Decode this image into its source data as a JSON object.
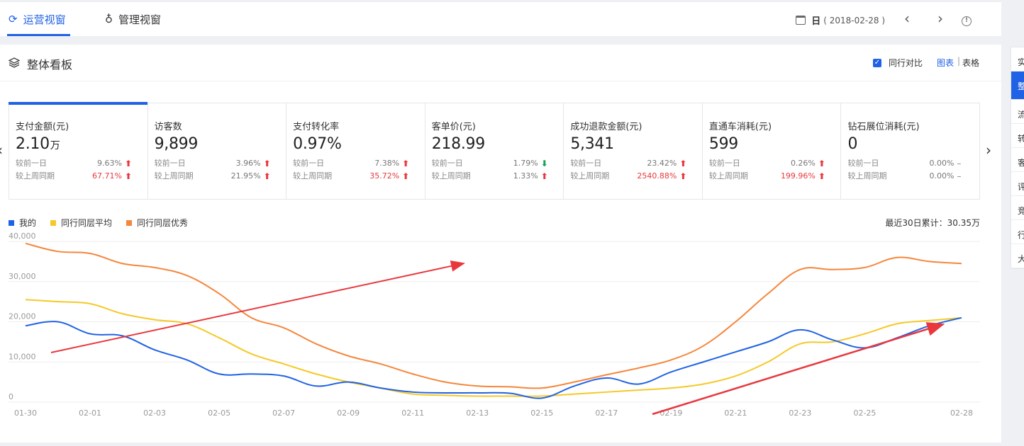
{
  "tabs": [
    {
      "label": "运营视窗",
      "active": true
    },
    {
      "label": "管理视窗",
      "active": false
    }
  ],
  "date": {
    "granularity": "日",
    "value": "( 2018-02-28 )"
  },
  "panel": {
    "title": "整体看板",
    "compare_label": "同行对比",
    "compare_checked": true,
    "view_chart": "图表",
    "view_sep": "|",
    "view_table": "表格"
  },
  "metrics": [
    {
      "label": "支付金额(元)",
      "value": "2.10",
      "unit": "万",
      "day_label": "较前一日",
      "day_value": "9.63%",
      "day_dir": "up",
      "day_red": false,
      "week_label": "较上周同期",
      "week_value": "67.71%",
      "week_dir": "up",
      "week_red": true
    },
    {
      "label": "访客数",
      "value": "9,899",
      "unit": "",
      "day_label": "较前一日",
      "day_value": "3.96%",
      "day_dir": "up",
      "day_red": false,
      "week_label": "较上周同期",
      "week_value": "21.95%",
      "week_dir": "up",
      "week_red": false
    },
    {
      "label": "支付转化率",
      "value": "0.97%",
      "unit": "",
      "day_label": "较前一日",
      "day_value": "7.38%",
      "day_dir": "up",
      "day_red": false,
      "week_label": "较上周同期",
      "week_value": "35.72%",
      "week_dir": "up",
      "week_red": true
    },
    {
      "label": "客单价(元)",
      "value": "218.99",
      "unit": "",
      "day_label": "较前一日",
      "day_value": "1.79%",
      "day_dir": "down",
      "day_red": false,
      "week_label": "较上周同期",
      "week_value": "1.33%",
      "week_dir": "up",
      "week_red": false
    },
    {
      "label": "成功退款金额(元)",
      "value": "5,341",
      "unit": "",
      "day_label": "较前一日",
      "day_value": "23.42%",
      "day_dir": "up",
      "day_red": false,
      "week_label": "较上周同期",
      "week_value": "2540.88%",
      "week_dir": "up",
      "week_red": true
    },
    {
      "label": "直通车消耗(元)",
      "value": "599",
      "unit": "",
      "day_label": "较前一日",
      "day_value": "0.26%",
      "day_dir": "up",
      "day_red": false,
      "week_label": "较上周同期",
      "week_value": "199.96%",
      "week_dir": "up",
      "week_red": true
    },
    {
      "label": "钻石展位消耗(元)",
      "value": "0",
      "unit": "",
      "day_label": "较前一日",
      "day_value": "0.00%",
      "day_dir": "flat",
      "day_red": false,
      "week_label": "较上周同期",
      "week_value": "0.00%",
      "week_dir": "flat",
      "week_red": false
    }
  ],
  "arrow_glyphs": {
    "up": "⬆",
    "down": "⬇",
    "flat": "–"
  },
  "total_label": "最近30日累计：30.35万",
  "side_tabs": [
    "实",
    "整",
    "流",
    "转",
    "客",
    "评",
    "竞",
    "行",
    "大"
  ],
  "colors": {
    "accent": "#2062e6",
    "me": "#2062e6",
    "avg": "#f5c928",
    "best": "#f5863a",
    "annotation": "#e8383d",
    "up": "#e8383d",
    "down": "#18a058"
  },
  "chart_data": {
    "type": "line",
    "x": [
      "01-30",
      "01-31",
      "02-01",
      "02-02",
      "02-03",
      "02-04",
      "02-05",
      "02-06",
      "02-07",
      "02-08",
      "02-09",
      "02-10",
      "02-11",
      "02-12",
      "02-13",
      "02-14",
      "02-15",
      "02-16",
      "02-17",
      "02-18",
      "02-19",
      "02-20",
      "02-21",
      "02-22",
      "02-23",
      "02-24",
      "02-25",
      "02-26",
      "02-27",
      "02-28"
    ],
    "x_tick_labels": [
      "01-30",
      "02-01",
      "02-03",
      "02-05",
      "02-07",
      "02-09",
      "02-11",
      "02-13",
      "02-15",
      "02-17",
      "02-19",
      "02-21",
      "02-23",
      "02-25",
      "02-28"
    ],
    "ylim": [
      0,
      40000
    ],
    "y_tick_labels": [
      "0",
      "10,000",
      "20,000",
      "30,000",
      "40,000"
    ],
    "grid": true,
    "legend_position": "top-left",
    "series": [
      {
        "name": "我的",
        "color": "#2062e6",
        "values": [
          19000,
          20000,
          17000,
          16500,
          13000,
          10500,
          7000,
          7000,
          6500,
          4000,
          5000,
          3500,
          2500,
          2300,
          2300,
          2200,
          1000,
          4000,
          6000,
          4500,
          7500,
          10000,
          12500,
          15000,
          18000,
          15500,
          13500,
          16000,
          19000,
          21000
        ]
      },
      {
        "name": "同行同层平均",
        "color": "#f5c928",
        "values": [
          25500,
          25000,
          24500,
          22000,
          20500,
          19500,
          16000,
          12000,
          9500,
          7000,
          5000,
          3500,
          2000,
          1700,
          1500,
          1500,
          1500,
          2000,
          2500,
          3000,
          3500,
          4500,
          6500,
          10000,
          14500,
          15000,
          17000,
          19500,
          20300,
          21000
        ]
      },
      {
        "name": "同行同层优秀",
        "color": "#f5863a",
        "values": [
          39500,
          37500,
          37000,
          34500,
          33500,
          31500,
          27000,
          21000,
          18500,
          14500,
          11500,
          9500,
          7000,
          5000,
          4000,
          3800,
          3500,
          5000,
          6800,
          8500,
          10500,
          14000,
          20000,
          27000,
          33000,
          33000,
          33500,
          36000,
          35000,
          34500
        ]
      }
    ]
  }
}
